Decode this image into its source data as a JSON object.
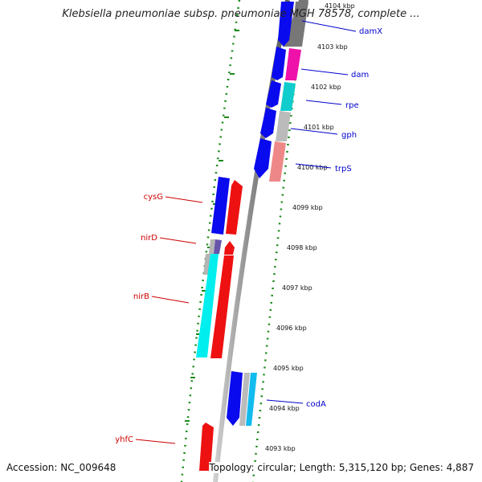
{
  "header": {
    "title": "Klebsiella pneumoniae subsp. pneumoniae MGH 78578, complete ..."
  },
  "footer": {
    "accession": "Accession: NC_009648",
    "topology": "Topology: circular; Length: 5,315,120 bp; Genes: 4,887"
  },
  "colors": {
    "backbone": "#888888",
    "scale_dots": "#1a8a1a",
    "forward_label": "#0000cc",
    "reverse_label": "#cc0000",
    "blue_feature": "#0a0aee",
    "red_feature": "#ee1111",
    "cyan_feature": "#00eeee",
    "magenta_feature": "#ee11aa",
    "teal_feature": "#11cccc",
    "grey_feature": "#bbbbbb",
    "pink_feature": "#ee8888",
    "lightblue_feature": "#11bbee",
    "purple_feature": "#6655aa"
  },
  "scale": {
    "tick_labels": [
      "4104 kbp",
      "4103 kbp",
      "4102 kbp",
      "4101 kbp",
      "4100 kbp",
      "4099 kbp",
      "4098 kbp",
      "4097 kbp",
      "4096 kbp",
      "4095 kbp",
      "4094 kbp",
      "4093 kbp"
    ]
  },
  "gene_labels": {
    "forward": [
      "damX",
      "dam",
      "rpe",
      "gph",
      "trpS",
      "codA"
    ],
    "reverse": [
      "cysG",
      "nirD",
      "nirB",
      "yhfC"
    ]
  }
}
